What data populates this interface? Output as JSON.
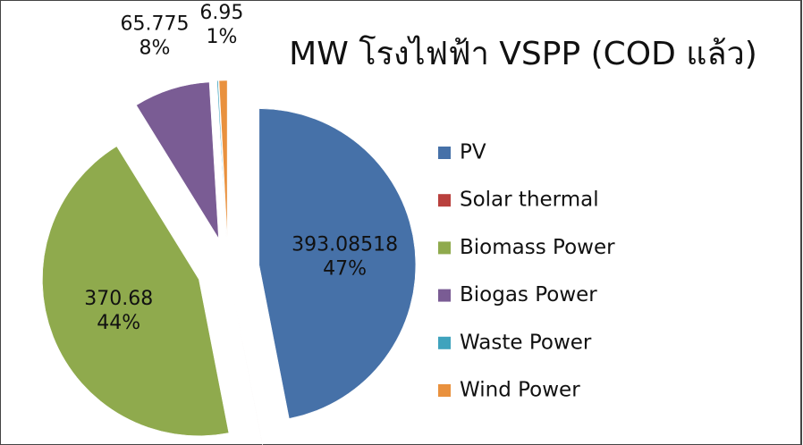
{
  "chart_data": {
    "type": "pie",
    "title": "MW โรงไฟฟ้า VSPP (COD แล้ว)",
    "categories": [
      "PV",
      "Solar thermal",
      "Biomass Power",
      "Biogas Power",
      "Waste Power",
      "Wind Power"
    ],
    "values": [
      393.08518,
      0.1,
      370.68,
      65.775,
      1,
      6.95
    ],
    "percent_labels": [
      "47%",
      null,
      "44%",
      "8%",
      null,
      "1%"
    ],
    "colors": [
      "#4671a8",
      "#b9403d",
      "#8faa4d",
      "#7a5c94",
      "#3fa3bd",
      "#e9913e"
    ],
    "legend": "right",
    "exploded": true
  }
}
